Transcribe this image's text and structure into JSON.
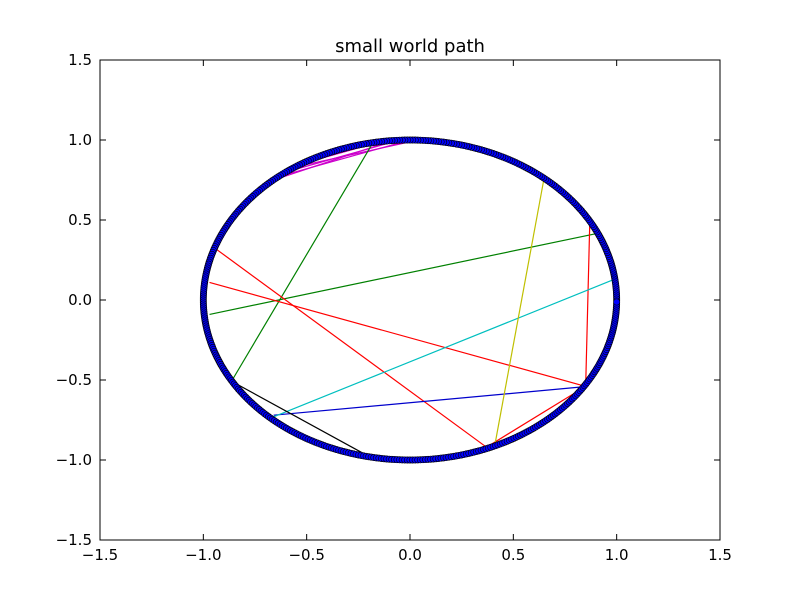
{
  "chart_data": {
    "type": "scatter",
    "title": "small world path",
    "xlabel": "",
    "ylabel": "",
    "xlim": [
      -1.5,
      1.5
    ],
    "ylim": [
      -1.5,
      1.5
    ],
    "grid": false,
    "x_ticks": [
      -1.5,
      -1.0,
      -0.5,
      0.0,
      0.5,
      1.0,
      1.5
    ],
    "y_ticks": [
      -1.5,
      -1.0,
      -0.5,
      0.0,
      0.5,
      1.0,
      1.5
    ],
    "x_tick_labels": [
      "−1.5",
      "−1.0",
      "−0.5",
      "0.0",
      "0.5",
      "1.0",
      "1.5"
    ],
    "y_tick_labels": [
      "−1.5",
      "−1.0",
      "−0.5",
      "0.0",
      "0.5",
      "1.0",
      "1.5"
    ],
    "nodes": {
      "layout": "circle",
      "center": [
        0,
        0
      ],
      "radius": 1.0,
      "count": 500,
      "color": "#0000ff",
      "edge_color": "#000000"
    },
    "path_segments": [
      {
        "color": "#cc00cc",
        "x": [
          0.0,
          -0.64
        ],
        "y": [
          1.0,
          0.77
        ]
      },
      {
        "color": "#cc00cc",
        "x": [
          -0.05,
          -0.6
        ],
        "y": [
          1.0,
          0.8
        ]
      },
      {
        "color": "#cc00cc",
        "x": [
          0.04,
          -0.56
        ],
        "y": [
          1.0,
          0.83
        ]
      },
      {
        "color": "#cc00cc",
        "x": [
          -0.1,
          -0.66
        ],
        "y": [
          0.99,
          0.75
        ]
      },
      {
        "color": "#cc00cc",
        "x": [
          -0.14,
          -0.5
        ],
        "y": [
          0.99,
          0.86
        ]
      },
      {
        "color": "#008000",
        "x": [
          -0.19,
          -0.86
        ],
        "y": [
          0.96,
          -0.5
        ]
      },
      {
        "color": "#008000",
        "x": [
          -0.97,
          0.92
        ],
        "y": [
          -0.09,
          0.42
        ]
      },
      {
        "color": "#ff0000",
        "x": [
          -0.97,
          0.85
        ],
        "y": [
          0.11,
          -0.54
        ]
      },
      {
        "color": "#ff0000",
        "x": [
          -0.94,
          0.37
        ],
        "y": [
          0.32,
          -0.92
        ]
      },
      {
        "color": "#ff0000",
        "x": [
          0.37,
          0.85
        ],
        "y": [
          -0.92,
          -0.54
        ]
      },
      {
        "color": "#ff0000",
        "x": [
          0.85,
          0.87
        ],
        "y": [
          -0.54,
          0.49
        ]
      },
      {
        "color": "#0000cc",
        "x": [
          -0.66,
          0.86
        ],
        "y": [
          -0.72,
          -0.54
        ]
      },
      {
        "color": "#00bfbf",
        "x": [
          -0.66,
          0.99
        ],
        "y": [
          -0.73,
          0.13
        ]
      },
      {
        "color": "#bfbf00",
        "x": [
          0.41,
          0.65
        ],
        "y": [
          -0.91,
          0.77
        ]
      },
      {
        "color": "#000000",
        "x": [
          -0.86,
          -0.21
        ],
        "y": [
          -0.51,
          -0.97
        ]
      },
      {
        "color": "#007f5f",
        "x": [
          -0.68,
          -0.5
        ],
        "y": [
          -0.72,
          -0.87
        ]
      }
    ]
  }
}
